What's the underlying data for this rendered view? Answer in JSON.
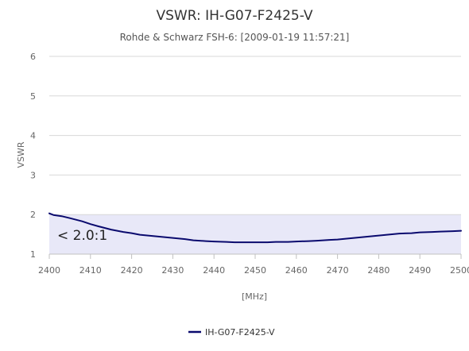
{
  "chart_data": {
    "type": "line",
    "title": "VSWR: IH-G07-F2425-V",
    "subtitle": "Rohde & Schwarz FSH-6: [2009-01-19 11:57:21]",
    "xlabel": "[MHz]",
    "ylabel": "VSWR",
    "xlim": [
      2400,
      2500
    ],
    "ylim": [
      1,
      6
    ],
    "x_ticks": [
      2400,
      2410,
      2420,
      2430,
      2440,
      2450,
      2460,
      2470,
      2480,
      2490,
      2500
    ],
    "y_ticks": [
      1,
      2,
      3,
      4,
      5,
      6
    ],
    "grid": true,
    "legend_position": "bottom-center",
    "plot_band": {
      "from": 1,
      "to": 2,
      "label": "< 2.0:1",
      "color": "#e8e8f8"
    },
    "series": [
      {
        "name": "IH-G07-F2425-V",
        "color": "#0a0a6e",
        "x": [
          2400,
          2401,
          2403,
          2405,
          2408,
          2410,
          2412,
          2415,
          2418,
          2420,
          2422,
          2425,
          2428,
          2430,
          2433,
          2435,
          2438,
          2440,
          2443,
          2445,
          2448,
          2450,
          2453,
          2455,
          2458,
          2460,
          2463,
          2465,
          2468,
          2470,
          2473,
          2475,
          2478,
          2480,
          2483,
          2485,
          2488,
          2490,
          2493,
          2495,
          2498,
          2500
        ],
        "values": [
          2.03,
          1.99,
          1.96,
          1.91,
          1.83,
          1.76,
          1.7,
          1.62,
          1.56,
          1.53,
          1.49,
          1.46,
          1.43,
          1.41,
          1.38,
          1.35,
          1.33,
          1.32,
          1.31,
          1.3,
          1.3,
          1.3,
          1.3,
          1.31,
          1.31,
          1.32,
          1.33,
          1.34,
          1.36,
          1.37,
          1.4,
          1.42,
          1.45,
          1.47,
          1.5,
          1.52,
          1.53,
          1.55,
          1.56,
          1.57,
          1.58,
          1.59
        ]
      }
    ]
  }
}
